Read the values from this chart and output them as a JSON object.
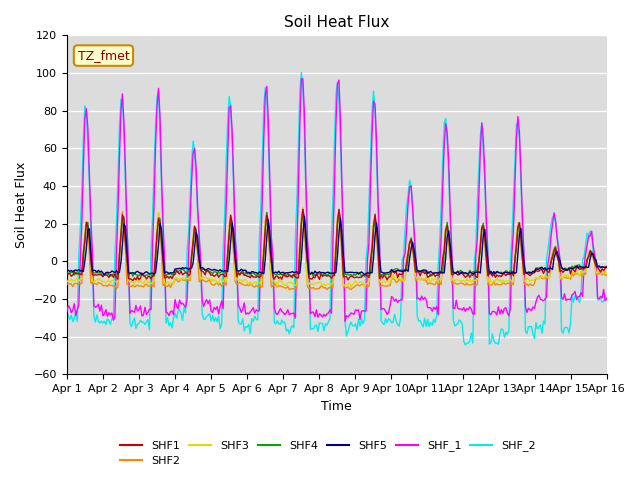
{
  "title": "Soil Heat Flux",
  "xlabel": "Time",
  "ylabel": "Soil Heat Flux",
  "ylim": [
    -60,
    120
  ],
  "yticks": [
    -60,
    -40,
    -20,
    0,
    20,
    40,
    60,
    80,
    100,
    120
  ],
  "xtick_labels": [
    "Apr 1",
    "Apr 2",
    "Apr 3",
    "Apr 4",
    "Apr 5",
    "Apr 6",
    "Apr 7",
    "Apr 8",
    "Apr 9",
    "Apr 10",
    "Apr 11",
    "Apr 12",
    "Apr 13",
    "Apr 14",
    "Apr 15",
    "Apr 16"
  ],
  "series_colors": {
    "SHF1": "#cc0000",
    "SHF2": "#ff8800",
    "SHF3": "#dddd00",
    "SHF4": "#00aa00",
    "SHF5": "#000088",
    "SHF_1": "#ff00ff",
    "SHF_2": "#00eeee"
  },
  "legend_label": "TZ_fmet",
  "legend_box_color": "#ffffcc",
  "legend_box_edge": "#cc8800",
  "bg_color": "#dcdcdc",
  "grid_color": "#ffffff",
  "n_days": 15,
  "hours_per_day": 24,
  "base_amps_large": [
    82,
    88,
    91,
    62,
    86,
    94,
    100,
    97,
    87,
    42,
    75,
    72,
    76,
    25,
    15
  ],
  "base_amps_small": [
    22,
    25,
    25,
    18,
    24,
    26,
    28,
    27,
    24,
    12,
    20,
    20,
    21,
    7,
    5
  ],
  "night_large_1": [
    -25,
    -27,
    -27,
    -22,
    -25,
    -27,
    -28,
    -28,
    -26,
    -20,
    -25,
    -26,
    -26,
    -20,
    -18
  ],
  "night_large_2": [
    -30,
    -32,
    -33,
    -28,
    -32,
    -33,
    -35,
    -34,
    -33,
    -32,
    -33,
    -42,
    -38,
    -35,
    -20
  ],
  "night_small_shf1": [
    -7,
    -8,
    -8,
    -6,
    -7,
    -8,
    -8,
    -8,
    -8,
    -6,
    -7,
    -7,
    -7,
    -5,
    -4
  ],
  "night_small_shf2": [
    -12,
    -13,
    -13,
    -10,
    -12,
    -13,
    -14,
    -14,
    -13,
    -10,
    -12,
    -12,
    -12,
    -9,
    -7
  ],
  "night_small_shf3": [
    -10,
    -11,
    -11,
    -9,
    -10,
    -11,
    -12,
    -12,
    -11,
    -9,
    -10,
    -10,
    -10,
    -8,
    -6
  ],
  "night_small_shf4": [
    -6,
    -7,
    -7,
    -5,
    -6,
    -7,
    -7,
    -7,
    -7,
    -5,
    -6,
    -6,
    -6,
    -4,
    -3
  ],
  "night_small_shf5": [
    -5,
    -6,
    -6,
    -4,
    -5,
    -6,
    -6,
    -6,
    -6,
    -5,
    -6,
    -6,
    -6,
    -4,
    -3
  ]
}
